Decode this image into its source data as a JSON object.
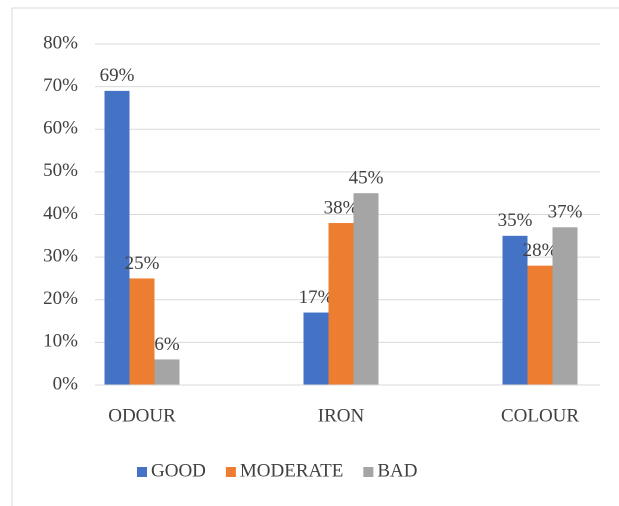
{
  "chart_data": {
    "type": "bar",
    "categories": [
      "ODOUR",
      "IRON",
      "COLOUR"
    ],
    "series": [
      {
        "name": "GOOD",
        "color": "#4472c4",
        "values": [
          69,
          17,
          35
        ],
        "value_labels": [
          "69%",
          "17%",
          "35%"
        ]
      },
      {
        "name": "MODERATE",
        "color": "#ed7d31",
        "values": [
          25,
          38,
          28
        ],
        "value_labels": [
          "25%",
          "38%",
          "28%"
        ]
      },
      {
        "name": "BAD",
        "color": "#a5a5a5",
        "values": [
          6,
          45,
          37
        ],
        "value_labels": [
          "6%",
          "45%",
          "37%"
        ]
      }
    ],
    "ylim": [
      0,
      80
    ],
    "yticks": [
      {
        "value": 0,
        "label": "0%"
      },
      {
        "value": 10,
        "label": "10%"
      },
      {
        "value": 20,
        "label": "20%"
      },
      {
        "value": 30,
        "label": "30%"
      },
      {
        "value": 40,
        "label": "40%"
      },
      {
        "value": 50,
        "label": "50%"
      },
      {
        "value": 60,
        "label": "60%"
      },
      {
        "value": 70,
        "label": "70%"
      },
      {
        "value": 80,
        "label": "80%"
      }
    ],
    "grid": true,
    "legend": "bottom"
  }
}
